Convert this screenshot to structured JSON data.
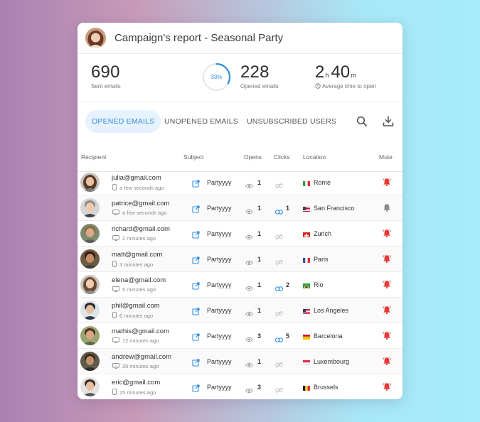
{
  "report": {
    "title": "Campaign's report - Seasonal Party",
    "stats": {
      "sent": {
        "value": "690",
        "label": "Sent emails"
      },
      "opened": {
        "percent": "33%",
        "fraction": 0.33,
        "value": "228",
        "label": "Opened emails"
      },
      "avg_time": {
        "hours": "2",
        "hours_unit": "h",
        "minutes": "40",
        "minutes_unit": "m",
        "label": "Average time to open"
      }
    },
    "tabs": [
      {
        "label": "OPENED EMAILS",
        "active": true
      },
      {
        "label": "UNOPENED EMAILS",
        "active": false
      },
      {
        "label": "UNSUBSCRIBED USERS",
        "active": false
      }
    ],
    "columns": [
      "Recipient",
      "Subject",
      "Opens",
      "Clicks",
      "Location",
      "Mute"
    ],
    "rows": [
      {
        "email": "julia@gmail.com",
        "time": "a few seconds ago",
        "device": "mobile",
        "subject": "Partyyyy",
        "opens": "1",
        "clicks": "",
        "location": "Rome",
        "country": "italy",
        "muted": false
      },
      {
        "email": "patrice@gmail.com",
        "time": "a few seconds ago",
        "device": "desktop",
        "subject": "Partyyyy",
        "opens": "1",
        "clicks": "1",
        "location": "San Francisco",
        "country": "usa",
        "muted": true
      },
      {
        "email": "richard@gmail.com",
        "time": "2 minutes ago",
        "device": "desktop",
        "subject": "Partyyyy",
        "opens": "1",
        "clicks": "",
        "location": "Zurich",
        "country": "switzerland",
        "muted": false
      },
      {
        "email": "matt@gmail.com",
        "time": "3 minutes ago",
        "device": "mobile",
        "subject": "Partyyyy",
        "opens": "1",
        "clicks": "",
        "location": "Paris",
        "country": "france",
        "muted": false
      },
      {
        "email": "elena@gmail.com",
        "time": "5 minutes ago",
        "device": "desktop",
        "subject": "Partyyyy",
        "opens": "1",
        "clicks": "2",
        "location": "Rio",
        "country": "brazil",
        "muted": false
      },
      {
        "email": "phil@gmail.com",
        "time": "6 minutes ago",
        "device": "mobile",
        "subject": "Partyyyy",
        "opens": "1",
        "clicks": "",
        "location": "Los Angeles",
        "country": "usa",
        "muted": false
      },
      {
        "email": "mathis@gmail.com",
        "time": "12 minutes ago",
        "device": "desktop",
        "subject": "Partyyyy",
        "opens": "3",
        "clicks": "5",
        "location": "Barcelona",
        "country": "spain",
        "muted": false
      },
      {
        "email": "andrew@gmail.com",
        "time": "20 minutes ago",
        "device": "desktop",
        "subject": "Partyyyy",
        "opens": "1",
        "clicks": "",
        "location": "Luxembourg",
        "country": "luxembourg",
        "muted": false
      },
      {
        "email": "eric@gmail.com",
        "time": "25 minutes ago",
        "device": "mobile",
        "subject": "Partyyyy",
        "opens": "3",
        "clicks": "",
        "location": "Brussels",
        "country": "belgium",
        "muted": false
      }
    ]
  },
  "colors": {
    "accent": "#2f8fe0",
    "bell_active": "#e53935",
    "bell_muted": "#8a8a8a"
  }
}
